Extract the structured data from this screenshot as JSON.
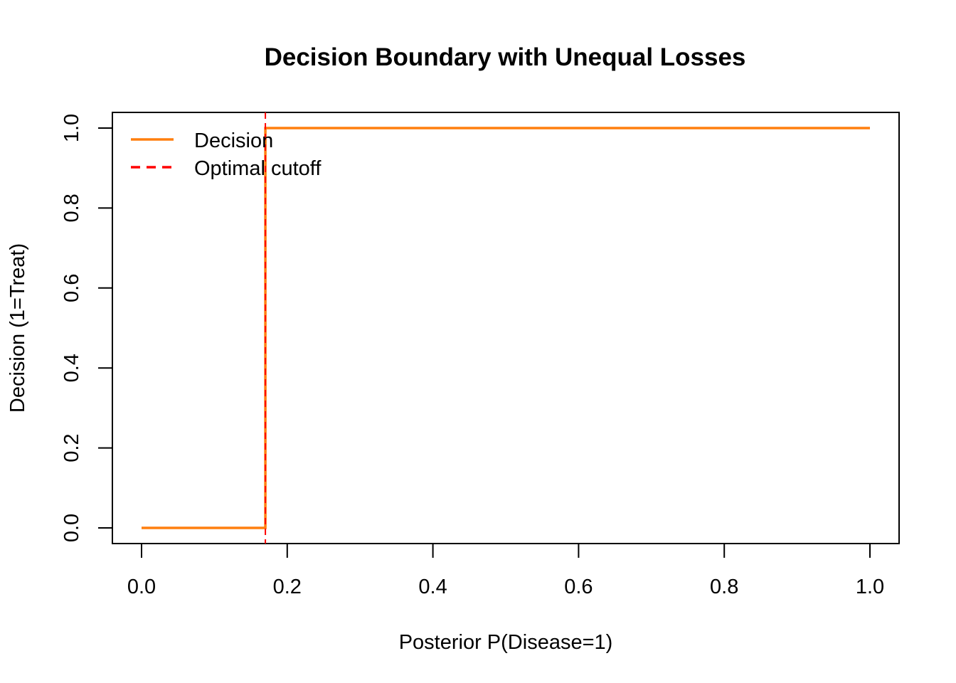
{
  "chart_data": {
    "type": "line",
    "title": "Decision Boundary with Unequal Losses",
    "xlabel": "Posterior P(Disease=1)",
    "ylabel": "Decision (1=Treat)",
    "xlim": [
      0,
      1
    ],
    "ylim": [
      0,
      1
    ],
    "x_ticks": [
      "0.0",
      "0.2",
      "0.4",
      "0.6",
      "0.8",
      "1.0"
    ],
    "x_tick_values": [
      0,
      0.2,
      0.4,
      0.6,
      0.8,
      1.0
    ],
    "y_ticks": [
      "0.0",
      "0.2",
      "0.4",
      "0.6",
      "0.8",
      "1.0"
    ],
    "y_tick_values": [
      0,
      0.2,
      0.4,
      0.6,
      0.8,
      1.0
    ],
    "grid": false,
    "legend_position": "top-left",
    "series": [
      {
        "name": "Decision",
        "color": "#ff7f0e",
        "style": "solid",
        "x": [
          0,
          0.17,
          0.17,
          1.0
        ],
        "y": [
          0,
          0,
          1,
          1
        ]
      }
    ],
    "reference_lines": [
      {
        "name": "Optimal cutoff",
        "orientation": "vertical",
        "x": 0.17,
        "color": "#ff0000",
        "style": "dashed"
      }
    ]
  }
}
